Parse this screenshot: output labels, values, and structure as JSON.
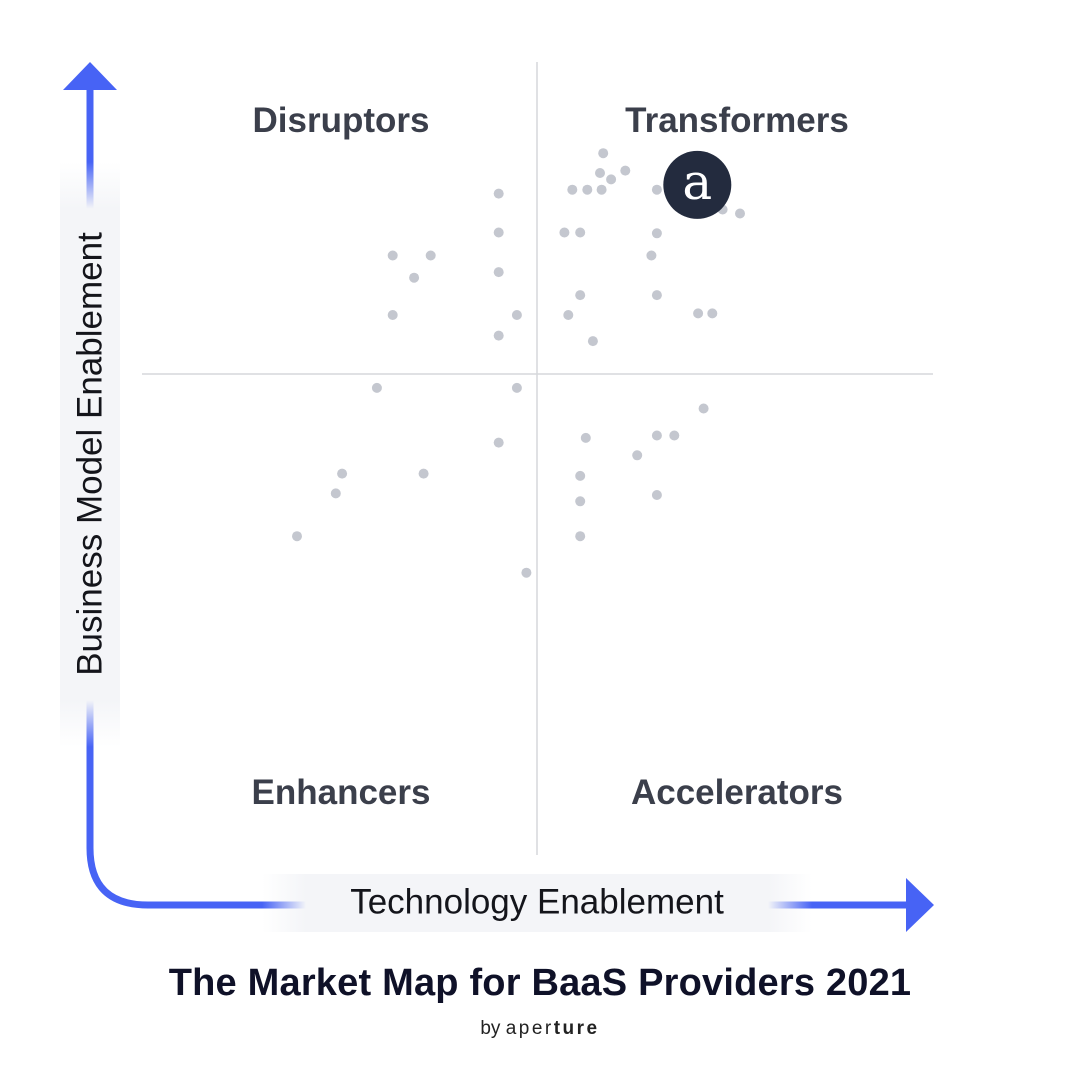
{
  "title": "The Market Map for BaaS Providers 2021",
  "byline": {
    "prefix": "by",
    "brand_light": "aper",
    "brand_bold": "ture"
  },
  "chart_data": {
    "type": "scatter",
    "xlabel": "Technology Enablement",
    "ylabel": "Business Model Enablement",
    "xlim": [
      0,
      100
    ],
    "ylim": [
      0,
      100
    ],
    "grid": false,
    "quadrants": {
      "top_left": "Disruptors",
      "top_right": "Transformers",
      "bottom_left": "Enhancers",
      "bottom_right": "Accelerators"
    },
    "highlight": {
      "glyph": "a",
      "x": 70.2,
      "y": 84.5,
      "color": "#232b3e"
    },
    "colors": {
      "axis_arrow": "#4763f5",
      "point": "#c4c7cf",
      "divider": "#d5d7db"
    },
    "points": [
      {
        "x": 58.3,
        "y": 88.5
      },
      {
        "x": 57.9,
        "y": 86.0
      },
      {
        "x": 59.3,
        "y": 85.2
      },
      {
        "x": 61.1,
        "y": 86.3
      },
      {
        "x": 54.4,
        "y": 83.9
      },
      {
        "x": 56.3,
        "y": 83.9
      },
      {
        "x": 58.1,
        "y": 83.9
      },
      {
        "x": 65.1,
        "y": 83.9
      },
      {
        "x": 45.1,
        "y": 83.4
      },
      {
        "x": 73.4,
        "y": 81.4
      },
      {
        "x": 75.6,
        "y": 80.9
      },
      {
        "x": 45.1,
        "y": 78.5
      },
      {
        "x": 53.4,
        "y": 78.5
      },
      {
        "x": 55.4,
        "y": 78.5
      },
      {
        "x": 65.1,
        "y": 78.4
      },
      {
        "x": 31.7,
        "y": 75.6
      },
      {
        "x": 36.5,
        "y": 75.6
      },
      {
        "x": 64.4,
        "y": 75.6
      },
      {
        "x": 45.1,
        "y": 73.5
      },
      {
        "x": 34.4,
        "y": 72.8
      },
      {
        "x": 55.4,
        "y": 70.6
      },
      {
        "x": 65.1,
        "y": 70.6
      },
      {
        "x": 31.7,
        "y": 68.1
      },
      {
        "x": 47.4,
        "y": 68.1
      },
      {
        "x": 53.9,
        "y": 68.1
      },
      {
        "x": 70.3,
        "y": 68.3
      },
      {
        "x": 72.1,
        "y": 68.3
      },
      {
        "x": 45.1,
        "y": 65.5
      },
      {
        "x": 57.0,
        "y": 64.8
      },
      {
        "x": 29.7,
        "y": 58.9
      },
      {
        "x": 47.4,
        "y": 58.9
      },
      {
        "x": 71.0,
        "y": 56.3
      },
      {
        "x": 56.1,
        "y": 52.6
      },
      {
        "x": 65.1,
        "y": 52.9
      },
      {
        "x": 67.3,
        "y": 52.9
      },
      {
        "x": 45.1,
        "y": 52.0
      },
      {
        "x": 62.6,
        "y": 50.4
      },
      {
        "x": 25.3,
        "y": 48.1
      },
      {
        "x": 35.6,
        "y": 48.1
      },
      {
        "x": 55.4,
        "y": 47.8
      },
      {
        "x": 24.5,
        "y": 45.6
      },
      {
        "x": 65.1,
        "y": 45.4
      },
      {
        "x": 55.4,
        "y": 44.6
      },
      {
        "x": 19.6,
        "y": 40.2
      },
      {
        "x": 55.4,
        "y": 40.2
      },
      {
        "x": 48.6,
        "y": 35.6
      }
    ]
  }
}
